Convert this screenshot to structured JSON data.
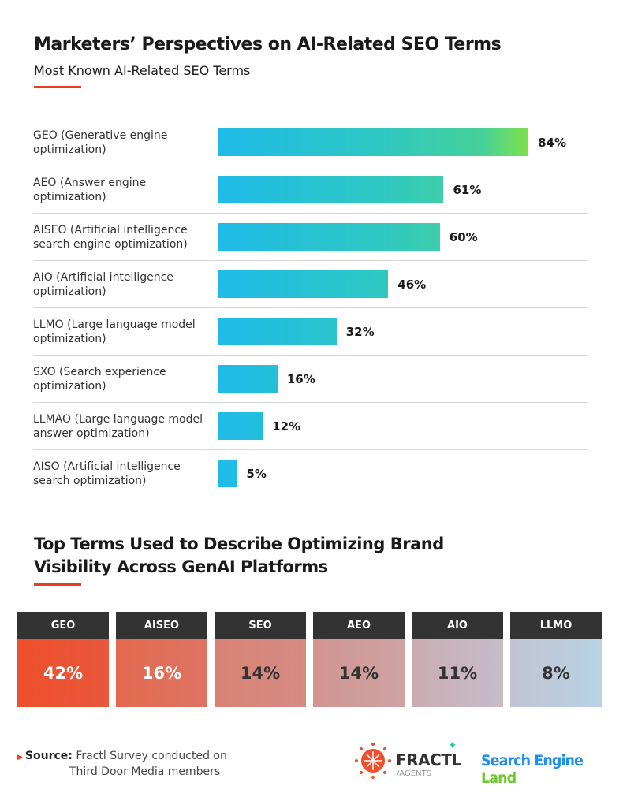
{
  "title": "Marketers’ Perspectives on AI-Related SEO Terms",
  "chart_data": [
    {
      "type": "bar",
      "orientation": "horizontal",
      "title": "Most Known AI-Related SEO Terms",
      "categories": [
        "GEO (Generative engine optimization)",
        "AEO (Answer engine optimization)",
        "AISEO (Artificial intelligence search engine optimization)",
        "AIO (Artificial intelligence optimization)",
        "LLMO (Large language model optimization)",
        "SXO (Search experience optimization)",
        "LLMAO (Large language model answer optimization)",
        "AISO (Artificial intelligence search optimization)"
      ],
      "values": [
        84,
        61,
        60,
        46,
        32,
        16,
        12,
        5
      ],
      "labels": [
        "84%",
        "61%",
        "60%",
        "46%",
        "32%",
        "16%",
        "12%",
        "5%"
      ],
      "unit": "%",
      "xlim": [
        0,
        100
      ],
      "grid": false,
      "colors": {
        "bar_start": "#1fbbe8",
        "bar_end": "#7ee04a"
      }
    },
    {
      "type": "table",
      "title": "Top Terms Used to Describe Optimizing Brand Visibility Across GenAI Platforms",
      "categories": [
        "GEO",
        "AISEO",
        "SEO",
        "AEO",
        "AIO",
        "LLMO"
      ],
      "values": [
        42,
        16,
        14,
        14,
        11,
        8
      ],
      "labels": [
        "42%",
        "16%",
        "14%",
        "14%",
        "11%",
        "8%"
      ],
      "colors": [
        "#ee4f2c",
        "#e26a50",
        "#d8847a",
        "#d09a96",
        "#c9b0b5",
        "#bccfe2"
      ],
      "text_colors": [
        "#ffffff",
        "#ffffff",
        "#333333",
        "#333333",
        "#333333",
        "#333333"
      ]
    }
  ],
  "footer": {
    "source_label": "Source:",
    "source_text": "Fractl Survey conducted on",
    "source_text2": "Third Door Media members",
    "logo_fractl": "FRACTL",
    "logo_fractl_sub": "/AGENTS",
    "logo_sel_a": "Search Engine ",
    "logo_sel_b": "Land"
  }
}
